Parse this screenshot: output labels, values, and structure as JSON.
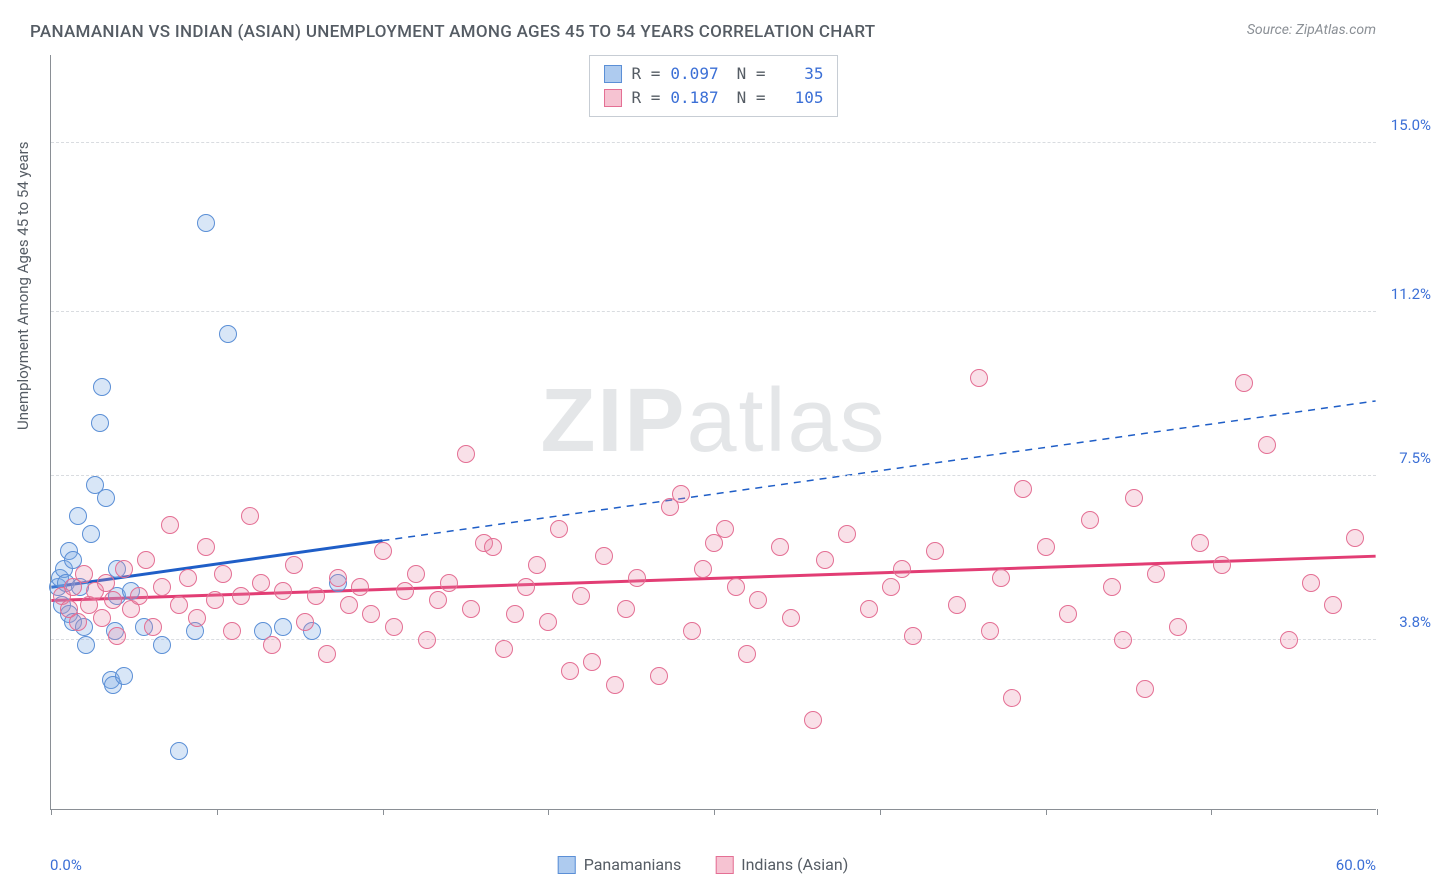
{
  "title": "PANAMANIAN VS INDIAN (ASIAN) UNEMPLOYMENT AMONG AGES 45 TO 54 YEARS CORRELATION CHART",
  "source": "Source: ZipAtlas.com",
  "y_axis_label": "Unemployment Among Ages 45 to 54 years",
  "watermark_bold": "ZIP",
  "watermark_rest": "atlas",
  "chart": {
    "type": "scatter",
    "background_color": "#ffffff",
    "axis_color": "#8a8f95",
    "grid_color": "#d9dce0",
    "grid_dash": "dashed",
    "label_color": "#555c64",
    "value_color": "#3b6fd6",
    "title_fontsize": 17,
    "label_fontsize": 15,
    "tick_fontsize": 15,
    "xlim": [
      0,
      60
    ],
    "ylim": [
      0,
      17
    ],
    "x_ticks": [
      0,
      7.5,
      15,
      22.5,
      30,
      37.5,
      45,
      52.5,
      60
    ],
    "x_tick_labels": {
      "0": "0.0%",
      "60": "60.0%"
    },
    "y_gridlines": [
      3.8,
      7.5,
      11.2,
      15.0
    ],
    "y_tick_labels": [
      "3.8%",
      "7.5%",
      "11.2%",
      "15.0%"
    ],
    "marker_radius": 9,
    "marker_opacity_fill": 0.28,
    "marker_border_width": 1.5,
    "stats_box": {
      "border_color": "#c7cdd4",
      "rows": [
        {
          "swatch_fill": "#aecbef",
          "swatch_border": "#5b8fd6",
          "r": "0.097",
          "n": "35"
        },
        {
          "swatch_fill": "#f6c3d2",
          "swatch_border": "#e46f94",
          "r": "0.187",
          "n": "105"
        }
      ],
      "r_label": "R =",
      "n_label": "N ="
    },
    "legend": [
      {
        "label": "Panamanians",
        "swatch_fill": "#aecbef",
        "swatch_border": "#5b8fd6"
      },
      {
        "label": "Indians (Asian)",
        "swatch_fill": "#f6c3d2",
        "swatch_border": "#e46f94"
      }
    ],
    "series": [
      {
        "name": "Panamanians",
        "color_fill": "rgba(126,173,230,0.30)",
        "color_border": "#5b8fd6",
        "trend": {
          "solid_from_x": 0,
          "solid_to_x": 15,
          "y_at_0": 5.0,
          "y_at_60": 9.2,
          "color": "#1f5ec7",
          "width_solid": 3,
          "width_dash": 1.5
        },
        "points": [
          [
            0.3,
            5.0
          ],
          [
            0.4,
            5.2
          ],
          [
            0.5,
            4.6
          ],
          [
            0.6,
            5.4
          ],
          [
            0.7,
            5.1
          ],
          [
            0.8,
            5.8
          ],
          [
            0.8,
            4.4
          ],
          [
            1.0,
            5.6
          ],
          [
            1.0,
            4.2
          ],
          [
            1.2,
            6.6
          ],
          [
            1.3,
            5.0
          ],
          [
            1.5,
            4.1
          ],
          [
            1.6,
            3.7
          ],
          [
            1.8,
            6.2
          ],
          [
            2.0,
            7.3
          ],
          [
            2.2,
            8.7
          ],
          [
            2.3,
            9.5
          ],
          [
            2.5,
            7.0
          ],
          [
            2.7,
            2.9
          ],
          [
            2.8,
            2.8
          ],
          [
            2.9,
            4.0
          ],
          [
            3.0,
            4.8
          ],
          [
            3.0,
            5.4
          ],
          [
            3.3,
            3.0
          ],
          [
            3.6,
            4.9
          ],
          [
            4.2,
            4.1
          ],
          [
            5.0,
            3.7
          ],
          [
            5.8,
            1.3
          ],
          [
            6.5,
            4.0
          ],
          [
            7.0,
            13.2
          ],
          [
            8.0,
            10.7
          ],
          [
            9.6,
            4.0
          ],
          [
            10.5,
            4.1
          ],
          [
            11.8,
            4.0
          ],
          [
            13.0,
            5.1
          ]
        ]
      },
      {
        "name": "Indians (Asian)",
        "color_fill": "rgba(232,135,168,0.26)",
        "color_border": "#e46f94",
        "trend": {
          "solid_from_x": 0,
          "solid_to_x": 60,
          "y_at_0": 4.7,
          "y_at_60": 5.7,
          "color": "#e23d74",
          "width_solid": 3,
          "width_dash": 0
        },
        "points": [
          [
            0.5,
            4.8
          ],
          [
            0.8,
            4.5
          ],
          [
            1.0,
            5.0
          ],
          [
            1.2,
            4.2
          ],
          [
            1.5,
            5.3
          ],
          [
            1.7,
            4.6
          ],
          [
            2.0,
            4.9
          ],
          [
            2.3,
            4.3
          ],
          [
            2.5,
            5.1
          ],
          [
            2.8,
            4.7
          ],
          [
            3.0,
            3.9
          ],
          [
            3.3,
            5.4
          ],
          [
            3.6,
            4.5
          ],
          [
            4.0,
            4.8
          ],
          [
            4.3,
            5.6
          ],
          [
            4.6,
            4.1
          ],
          [
            5.0,
            5.0
          ],
          [
            5.4,
            6.4
          ],
          [
            5.8,
            4.6
          ],
          [
            6.2,
            5.2
          ],
          [
            6.6,
            4.3
          ],
          [
            7.0,
            5.9
          ],
          [
            7.4,
            4.7
          ],
          [
            7.8,
            5.3
          ],
          [
            8.2,
            4.0
          ],
          [
            8.6,
            4.8
          ],
          [
            9.0,
            6.6
          ],
          [
            9.5,
            5.1
          ],
          [
            10.0,
            3.7
          ],
          [
            10.5,
            4.9
          ],
          [
            11.0,
            5.5
          ],
          [
            11.5,
            4.2
          ],
          [
            12.0,
            4.8
          ],
          [
            12.5,
            3.5
          ],
          [
            13.0,
            5.2
          ],
          [
            13.5,
            4.6
          ],
          [
            14.0,
            5.0
          ],
          [
            14.5,
            4.4
          ],
          [
            15.0,
            5.8
          ],
          [
            15.5,
            4.1
          ],
          [
            16.0,
            4.9
          ],
          [
            16.5,
            5.3
          ],
          [
            17.0,
            3.8
          ],
          [
            17.5,
            4.7
          ],
          [
            18.0,
            5.1
          ],
          [
            18.8,
            8.0
          ],
          [
            19.0,
            4.5
          ],
          [
            19.6,
            6.0
          ],
          [
            20.0,
            5.9
          ],
          [
            20.5,
            3.6
          ],
          [
            21.0,
            4.4
          ],
          [
            21.5,
            5.0
          ],
          [
            22.0,
            5.5
          ],
          [
            22.5,
            4.2
          ],
          [
            23.0,
            6.3
          ],
          [
            23.5,
            3.1
          ],
          [
            24.0,
            4.8
          ],
          [
            24.5,
            3.3
          ],
          [
            25.0,
            5.7
          ],
          [
            25.5,
            2.8
          ],
          [
            26.0,
            4.5
          ],
          [
            26.5,
            5.2
          ],
          [
            27.5,
            3.0
          ],
          [
            28.0,
            6.8
          ],
          [
            28.5,
            7.1
          ],
          [
            29.0,
            4.0
          ],
          [
            29.5,
            5.4
          ],
          [
            30.0,
            6.0
          ],
          [
            30.5,
            6.3
          ],
          [
            31.0,
            5.0
          ],
          [
            31.5,
            3.5
          ],
          [
            32.0,
            4.7
          ],
          [
            33.0,
            5.9
          ],
          [
            33.5,
            4.3
          ],
          [
            34.5,
            2.0
          ],
          [
            35.0,
            5.6
          ],
          [
            36.0,
            6.2
          ],
          [
            37.0,
            4.5
          ],
          [
            38.0,
            5.0
          ],
          [
            38.5,
            5.4
          ],
          [
            39.0,
            3.9
          ],
          [
            40.0,
            5.8
          ],
          [
            41.0,
            4.6
          ],
          [
            42.0,
            9.7
          ],
          [
            42.5,
            4.0
          ],
          [
            43.0,
            5.2
          ],
          [
            43.5,
            2.5
          ],
          [
            44.0,
            7.2
          ],
          [
            45.0,
            5.9
          ],
          [
            46.0,
            4.4
          ],
          [
            47.0,
            6.5
          ],
          [
            48.0,
            5.0
          ],
          [
            48.5,
            3.8
          ],
          [
            49.0,
            7.0
          ],
          [
            49.5,
            2.7
          ],
          [
            50.0,
            5.3
          ],
          [
            51.0,
            4.1
          ],
          [
            52.0,
            6.0
          ],
          [
            53.0,
            5.5
          ],
          [
            54.0,
            9.6
          ],
          [
            55.0,
            8.2
          ],
          [
            56.0,
            3.8
          ],
          [
            57.0,
            5.1
          ],
          [
            58.0,
            4.6
          ],
          [
            59.0,
            6.1
          ]
        ]
      }
    ]
  }
}
